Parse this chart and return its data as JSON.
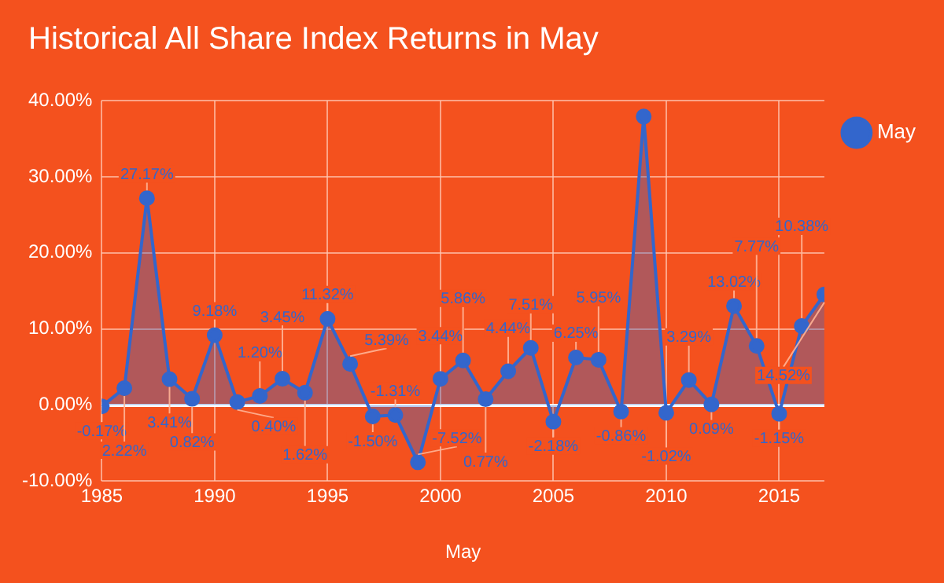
{
  "chart_data": {
    "type": "area",
    "title": "Historical All Share Index Returns in May",
    "xlabel": "May",
    "x": [
      1985,
      1986,
      1987,
      1988,
      1989,
      1990,
      1991,
      1992,
      1993,
      1994,
      1995,
      1996,
      1997,
      1998,
      1999,
      2000,
      2001,
      2002,
      2003,
      2004,
      2005,
      2006,
      2007,
      2008,
      2009,
      2010,
      2011,
      2012,
      2013,
      2014,
      2015,
      2016,
      2017
    ],
    "series": [
      {
        "name": "May",
        "color": "#3366cc",
        "values": [
          -0.17,
          2.22,
          27.17,
          3.41,
          0.82,
          9.18,
          0.4,
          1.2,
          3.45,
          1.62,
          11.32,
          5.39,
          -1.5,
          -1.31,
          -7.52,
          3.44,
          5.86,
          0.77,
          4.44,
          7.51,
          -2.18,
          6.25,
          5.95,
          -0.86,
          37.9,
          -1.02,
          3.29,
          0.09,
          13.02,
          7.77,
          -1.15,
          10.38,
          14.52
        ],
        "value_labels": [
          "-0.17%",
          "2.22%",
          "27.17%",
          "3.41%",
          "0.82%",
          "9.18%",
          "0.40%",
          "1.20%",
          "3.45%",
          "1.62%",
          "11.32%",
          "5.39%",
          "-1.50%",
          "-1.31%",
          "-7.52%",
          "3.44%",
          "5.86%",
          "0.77%",
          "4.44%",
          "7.51%",
          "-2.18%",
          "6.25%",
          "5.95%",
          "-0.86%",
          null,
          "-1.02%",
          "3.29%",
          "0.09%",
          "13.02%",
          "7.77%",
          "-1.15%",
          "10.38%",
          "14.52%"
        ]
      }
    ],
    "xlim": [
      1985,
      2017
    ],
    "xticks": [
      1985,
      1990,
      1995,
      2000,
      2005,
      2010,
      2015
    ],
    "ylim": [
      -10,
      40
    ],
    "yticks": [
      {
        "value": -10,
        "label": "-10.00%"
      },
      {
        "value": 0,
        "label": "0.00%"
      },
      {
        "value": 10,
        "label": "10.00%"
      },
      {
        "value": 20,
        "label": "20.00%"
      },
      {
        "value": 30,
        "label": "30.00%"
      },
      {
        "value": 40,
        "label": "40.00%"
      }
    ],
    "grid": true,
    "legend": "top right",
    "marker": "circle",
    "line_style": "solid"
  }
}
